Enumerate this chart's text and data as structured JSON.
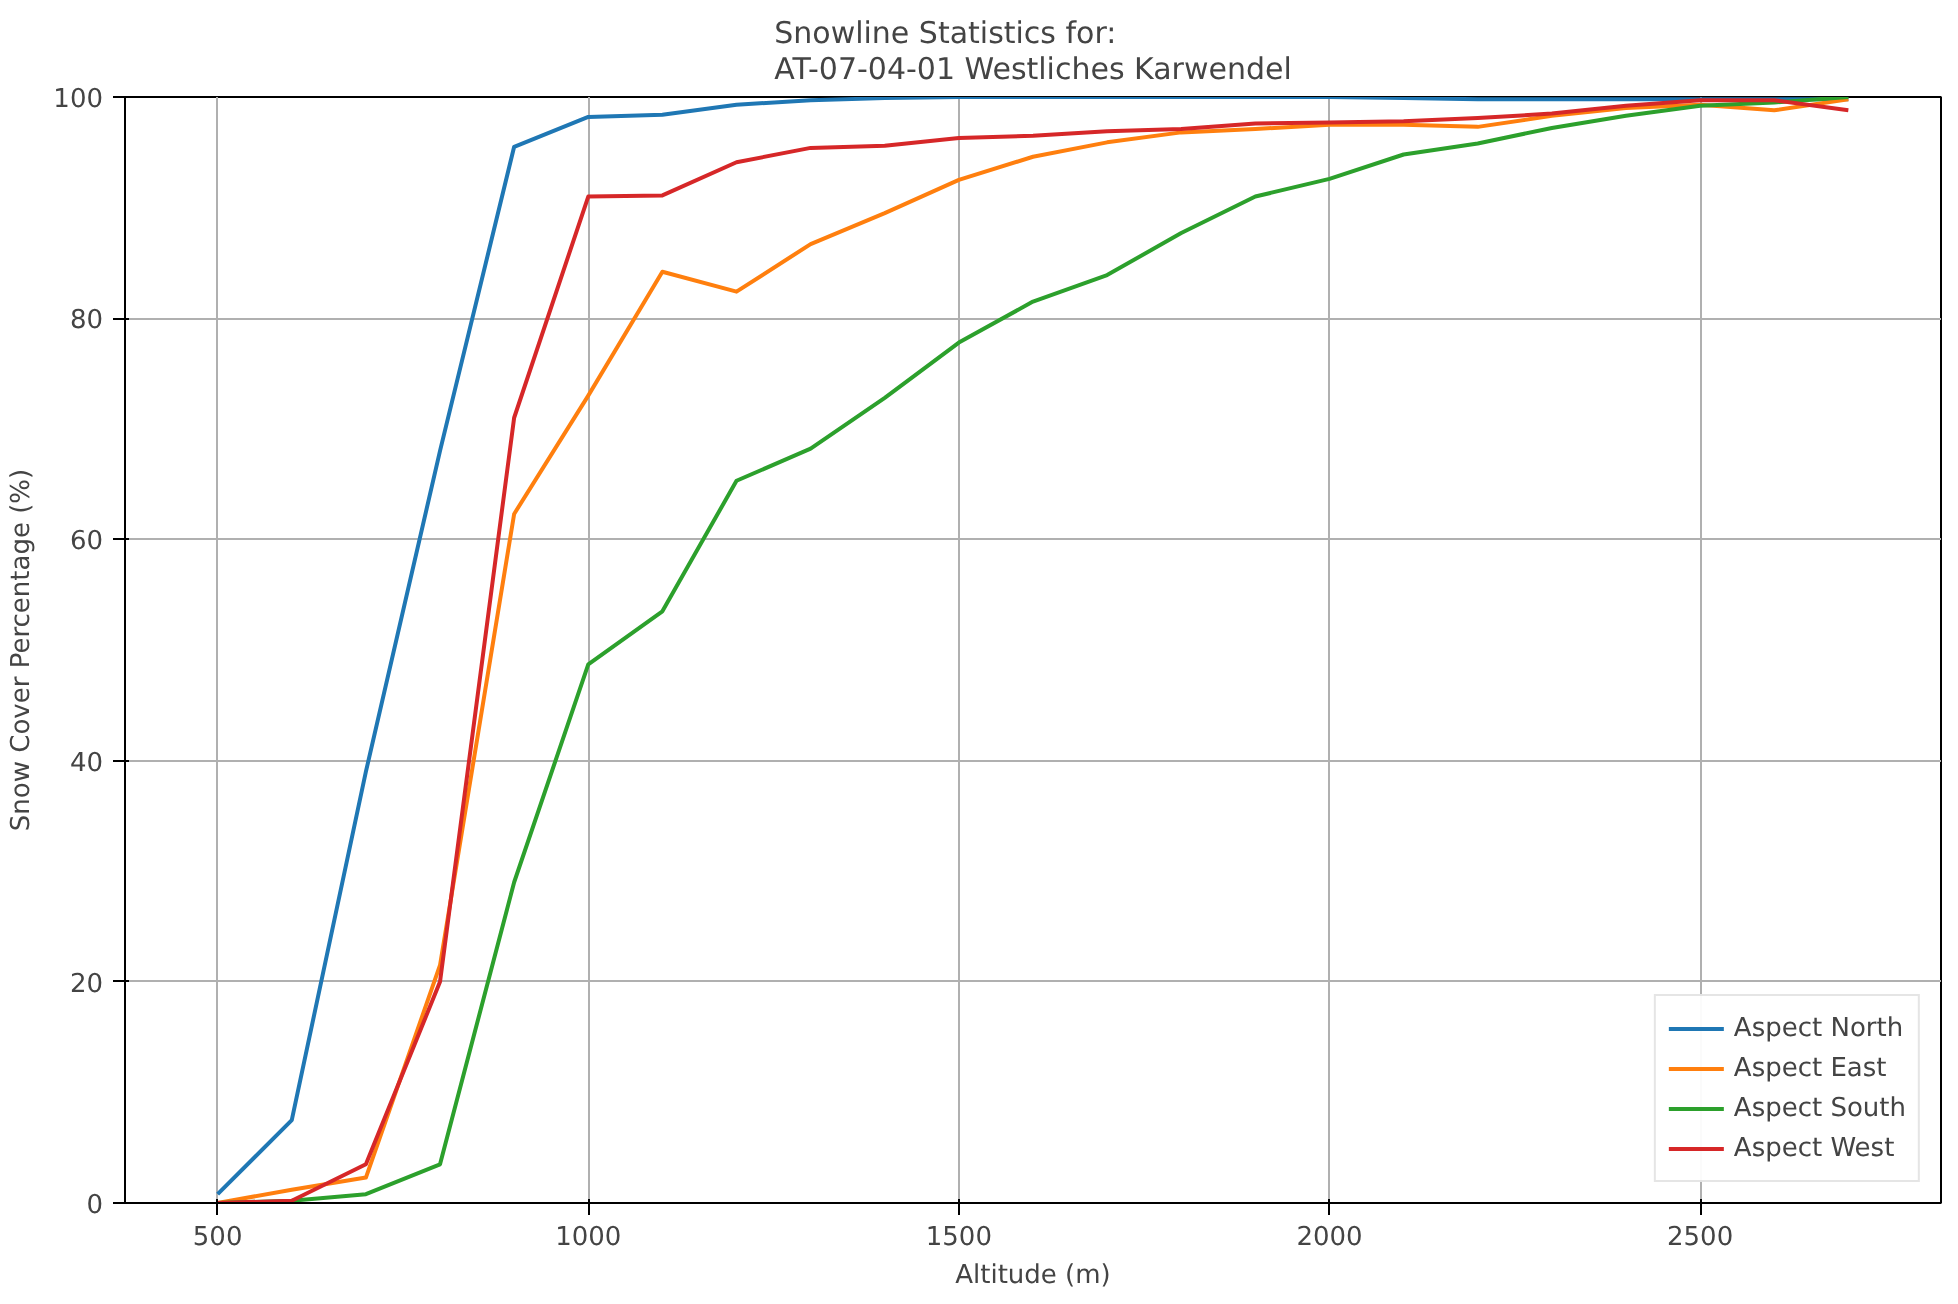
{
  "chart_data": {
    "type": "line",
    "title": "Snowline Statistics for:\nAT-07-04-01 Westliches Karwendel",
    "xlabel": "Altitude (m)",
    "ylabel": "Snow Cover Percentage (%)",
    "x": [
      500,
      600,
      700,
      800,
      900,
      1000,
      1100,
      1200,
      1300,
      1400,
      1500,
      1600,
      1700,
      1800,
      1900,
      2000,
      2100,
      2200,
      2300,
      2400,
      2500,
      2600,
      2700
    ],
    "series": [
      {
        "name": "Aspect North",
        "color": "#1f77b4",
        "values": [
          0.8,
          7.5,
          39,
          68,
          95.5,
          98.2,
          98.4,
          99.3,
          99.7,
          99.9,
          100,
          100,
          100,
          100,
          100,
          100,
          99.9,
          99.8,
          99.8,
          99.8,
          99.8,
          99.8,
          99.8
        ]
      },
      {
        "name": "Aspect East",
        "color": "#ff7f0e",
        "values": [
          0,
          1.2,
          2.3,
          21.5,
          62.3,
          73,
          84.2,
          82.4,
          86.7,
          89.5,
          92.5,
          94.6,
          95.9,
          96.8,
          97.1,
          97.5,
          97.5,
          97.3,
          98.3,
          99,
          99.3,
          98.8,
          99.8
        ]
      },
      {
        "name": "Aspect South",
        "color": "#2ca02c",
        "values": [
          0,
          0.2,
          0.8,
          3.5,
          29,
          48.7,
          53.5,
          65.3,
          68.2,
          72.8,
          77.8,
          81.5,
          83.9,
          87.7,
          91,
          92.6,
          94.8,
          95.8,
          97.2,
          98.3,
          99.2,
          99.5,
          100
        ]
      },
      {
        "name": "Aspect West",
        "color": "#d62728",
        "values": [
          0,
          0.2,
          3.5,
          20,
          71,
          91,
          91.1,
          94.1,
          95.4,
          95.6,
          96.3,
          96.5,
          96.9,
          97.1,
          97.6,
          97.7,
          97.8,
          98.1,
          98.5,
          99.2,
          99.7,
          99.7,
          98.8
        ]
      }
    ],
    "xlim": [
      375,
      2825
    ],
    "ylim": [
      0,
      100
    ],
    "xticks": [
      500,
      1000,
      1500,
      2000,
      2500
    ],
    "yticks": [
      0,
      20,
      40,
      60,
      80,
      100
    ],
    "grid": true,
    "legend": "bottom right",
    "marker": "none",
    "line_style": "solid"
  }
}
